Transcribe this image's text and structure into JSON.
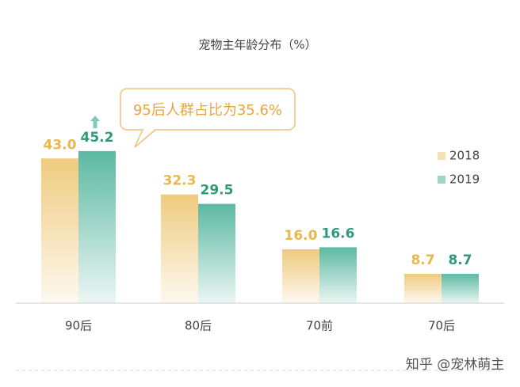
{
  "chart_data": {
    "type": "bar",
    "title": "宠物主年龄分布（%）",
    "categories": [
      "90后",
      "80后",
      "70前",
      "70后"
    ],
    "series": [
      {
        "name": "2018",
        "color": "#efcb7e",
        "label_color": "#e9b84c",
        "values": [
          43.0,
          32.3,
          16.0,
          8.7
        ],
        "value_labels": [
          "43.0",
          "32.3",
          "16.0",
          "8.7"
        ]
      },
      {
        "name": "2019",
        "color": "#5cb9a2",
        "label_color": "#2f9a7b",
        "values": [
          45.2,
          29.5,
          16.6,
          8.7
        ],
        "value_labels": [
          "45.2",
          "29.5",
          "16.6",
          "8.7"
        ]
      }
    ],
    "annotation": "95后人群占比为35.6%",
    "watermark": "知乎 @宠林萌主"
  }
}
